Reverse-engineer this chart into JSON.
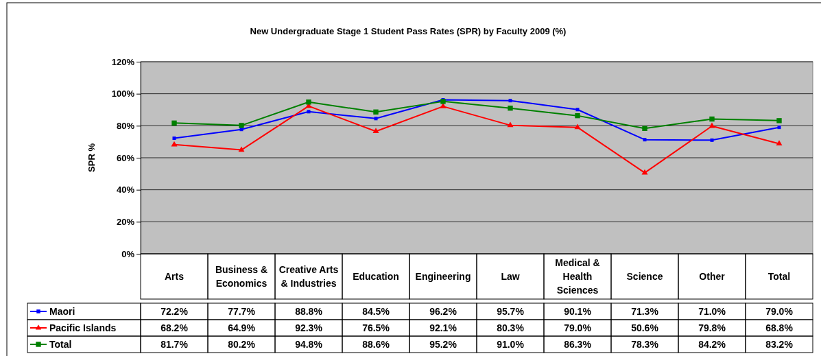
{
  "chart_data": {
    "type": "line",
    "title": "New Undergraduate Stage 1 Student Pass Rates (SPR) by Faculty 2009 (%)",
    "ylabel": "SPR %",
    "categories": [
      "Arts",
      "Business & Economics",
      "Creative Arts & Industries",
      "Education",
      "Engineering",
      "Law",
      "Medical & Health Sciences",
      "Science",
      "Other",
      "Total"
    ],
    "series": [
      {
        "name": "Maori",
        "color": "#0000ff",
        "marker": "square",
        "values": [
          72.2,
          77.7,
          88.8,
          84.5,
          96.2,
          95.7,
          90.1,
          71.3,
          71.0,
          79.0
        ],
        "value_labels": [
          "72.2%",
          "77.7%",
          "88.8%",
          "84.5%",
          "96.2%",
          "95.7%",
          "90.1%",
          "71.3%",
          "71.0%",
          "79.0%"
        ]
      },
      {
        "name": "Pacific Islands",
        "color": "#ff0000",
        "marker": "triangle",
        "values": [
          68.2,
          64.9,
          92.3,
          76.5,
          92.1,
          80.3,
          79.0,
          50.6,
          79.8,
          68.8
        ],
        "value_labels": [
          "68.2%",
          "64.9%",
          "92.3%",
          "76.5%",
          "92.1%",
          "80.3%",
          "79.0%",
          "50.6%",
          "79.8%",
          "68.8%"
        ]
      },
      {
        "name": "Total",
        "color": "#008000",
        "marker": "square",
        "values": [
          81.7,
          80.2,
          94.8,
          88.6,
          95.2,
          91.0,
          86.3,
          78.3,
          84.2,
          83.2
        ],
        "value_labels": [
          "81.7%",
          "80.2%",
          "94.8%",
          "88.6%",
          "95.2%",
          "91.0%",
          "86.3%",
          "78.3%",
          "84.2%",
          "83.2%"
        ]
      }
    ],
    "ylim": [
      0,
      120
    ],
    "yticks": [
      {
        "value": 0,
        "label": "0%"
      },
      {
        "value": 20,
        "label": "20%"
      },
      {
        "value": 40,
        "label": "40%"
      },
      {
        "value": 60,
        "label": "60%"
      },
      {
        "value": 80,
        "label": "80%"
      },
      {
        "value": 100,
        "label": "100%"
      },
      {
        "value": 120,
        "label": "120%"
      }
    ],
    "grid": "y",
    "legend": "bottom"
  }
}
